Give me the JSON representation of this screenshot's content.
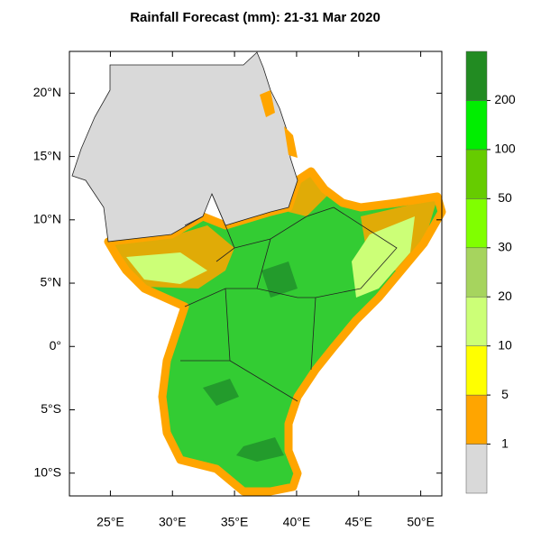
{
  "title": "Rainfall Forecast (mm): 21-31 Mar 2020",
  "xlim": [
    21.7,
    51.7
  ],
  "ylim": [
    -11.8,
    23.3
  ],
  "lon_ticks": [
    {
      "value": 25,
      "label": "25°E"
    },
    {
      "value": 30,
      "label": "30°E"
    },
    {
      "value": 35,
      "label": "35°E"
    },
    {
      "value": 40,
      "label": "40°E"
    },
    {
      "value": 45,
      "label": "45°E"
    },
    {
      "value": 50,
      "label": "50°E"
    }
  ],
  "lat_ticks": [
    {
      "value": 20,
      "label": "20°N"
    },
    {
      "value": 15,
      "label": "15°N"
    },
    {
      "value": 10,
      "label": "10°N"
    },
    {
      "value": 5,
      "label": "5°N"
    },
    {
      "value": 0,
      "label": "0°"
    },
    {
      "value": -5,
      "label": "5°S"
    },
    {
      "value": -10,
      "label": "10°S"
    }
  ],
  "colorbar": {
    "bounds": [
      1,
      5,
      10,
      20,
      30,
      50,
      100,
      200
    ],
    "colors": [
      "#d9d9d9",
      "#ffa500",
      "#ffff00",
      "#ccff77",
      "#a6d45e",
      "#80ff00",
      "#66cc00",
      "#00ee00",
      "#228b22"
    ]
  }
}
